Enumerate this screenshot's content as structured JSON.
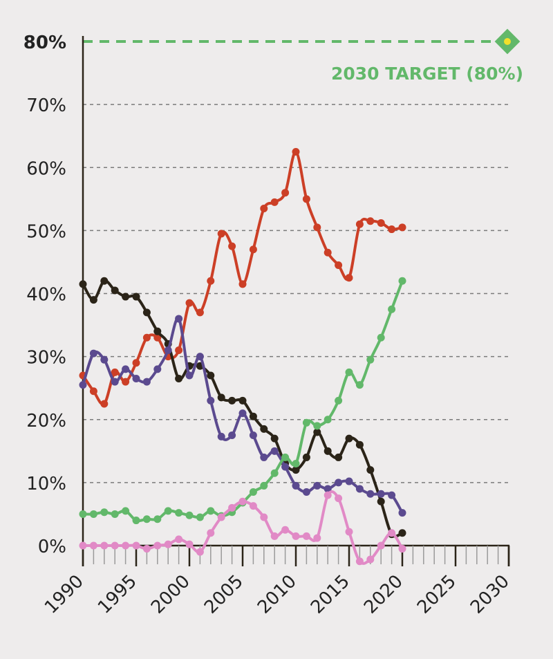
{
  "chart_data": {
    "type": "line",
    "title": "",
    "xlabel": "",
    "ylabel": "",
    "xlim": [
      1990,
      2030
    ],
    "ylim": [
      0,
      80
    ],
    "y_ticks": [
      0,
      10,
      20,
      30,
      40,
      50,
      60,
      70,
      80
    ],
    "y_tick_labels": [
      "0%",
      "10%",
      "20%",
      "30%",
      "40%",
      "50%",
      "60%",
      "70%",
      "80%"
    ],
    "x_ticks": [
      1990,
      1995,
      2000,
      2005,
      2010,
      2015,
      2020,
      2025,
      2030
    ],
    "x_tick_labels": [
      "1990",
      "1995",
      "2000",
      "2005",
      "2010",
      "2015",
      "2020",
      "2025",
      "2030"
    ],
    "grid": "horizontal dashed",
    "x": [
      1990,
      1991,
      1992,
      1993,
      1994,
      1995,
      1996,
      1997,
      1998,
      1999,
      2000,
      2001,
      2002,
      2003,
      2004,
      2005,
      2006,
      2007,
      2008,
      2009,
      2010,
      2011,
      2012,
      2013,
      2014,
      2015,
      2016,
      2017,
      2018,
      2019,
      2020
    ],
    "series": [
      {
        "color": "#cc3f26",
        "values": [
          27,
          24.5,
          22.5,
          27.5,
          26,
          29,
          33,
          33,
          30,
          31,
          38.5,
          37,
          42,
          49.5,
          47.5,
          41.5,
          47,
          53.5,
          54.5,
          56,
          62.5,
          55,
          50.5,
          46.5,
          44.5,
          42.5,
          51,
          51.5,
          51.2,
          50.2,
          50.5
        ]
      },
      {
        "color": "#2b2418",
        "values": [
          41.5,
          39,
          42,
          40.5,
          39.5,
          39.5,
          37,
          34,
          32,
          26.5,
          28.5,
          28.5,
          27,
          23.5,
          23,
          23,
          20.5,
          18.5,
          17,
          13,
          12,
          14,
          18,
          15,
          14,
          17,
          16,
          12,
          7,
          1.8,
          2
        ]
      },
      {
        "color": "#5b4a8f",
        "values": [
          25.5,
          30.5,
          29.5,
          26,
          28,
          26.5,
          26,
          28,
          31,
          36,
          27,
          30,
          23,
          17.3,
          17.5,
          21,
          17.5,
          14,
          15,
          12.5,
          9.5,
          8.5,
          9.5,
          9,
          10,
          10.2,
          9,
          8.2,
          8.2,
          8,
          5.2
        ]
      },
      {
        "color": "#62b86a",
        "values": [
          5,
          5,
          5.3,
          5,
          5.5,
          4,
          4.2,
          4.2,
          5.5,
          5.2,
          4.8,
          4.5,
          5.5,
          4.7,
          5.3,
          6.8,
          8.5,
          9.5,
          11.5,
          14,
          13,
          19.5,
          19,
          20,
          23,
          27.5,
          25.5,
          29.5,
          33,
          37.5,
          42
        ]
      },
      {
        "color": "#e18ac6",
        "values": [
          0,
          0,
          0,
          0,
          0,
          0,
          -0.5,
          0,
          0.2,
          1,
          0.2,
          -1,
          2,
          4.5,
          6,
          7,
          6.3,
          4.5,
          1.5,
          2.5,
          1.5,
          1.5,
          1.2,
          8,
          7.5,
          2.2,
          -2.5,
          -2.2,
          0,
          2,
          -0.5
        ]
      }
    ],
    "target": {
      "label": "2030 TARGET (80%)",
      "year": 2030,
      "value": 80,
      "color": "#62b86a",
      "marker_color": "#62b86a",
      "marker_center_color": "#f2e02b"
    },
    "colors": {
      "axis": "#2b2418",
      "grid": "#7a7a7a",
      "y80_label": "#62b86a"
    }
  }
}
